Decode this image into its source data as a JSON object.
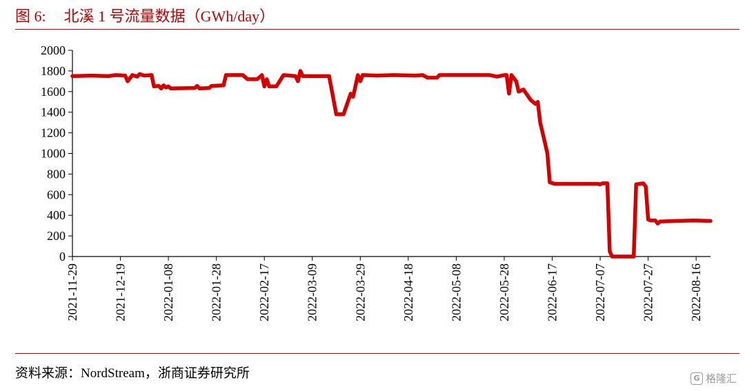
{
  "header": {
    "figure_number": "图 6:",
    "title": "北溪 1 号流量数据（GWh/day）"
  },
  "footer": {
    "source": "资料来源：NordStream，浙商证券研究所",
    "watermark": "格隆汇"
  },
  "chart_data": {
    "type": "line",
    "title": "北溪 1 号流量数据（GWh/day）",
    "xlabel": "",
    "ylabel": "",
    "ylim": [
      0,
      2000
    ],
    "yticks": [
      0,
      200,
      400,
      600,
      800,
      1000,
      1200,
      1400,
      1600,
      1800,
      2000
    ],
    "xticks": [
      "2021-11-29",
      "2021-12-19",
      "2022-01-08",
      "2022-01-28",
      "2022-02-17",
      "2022-03-09",
      "2022-03-29",
      "2022-04-18",
      "2022-05-08",
      "2022-05-28",
      "2022-06-17",
      "2022-07-07",
      "2022-07-27",
      "2022-08-16"
    ],
    "xlim": [
      "2021-11-29",
      "2022-08-22"
    ],
    "grid": false,
    "legend": "none",
    "series": [
      {
        "color": "#d40000",
        "points": [
          [
            "2021-11-29",
            1750
          ],
          [
            "2021-12-07",
            1755
          ],
          [
            "2021-12-14",
            1750
          ],
          [
            "2021-12-17",
            1760
          ],
          [
            "2021-12-21",
            1755
          ],
          [
            "2021-12-22",
            1700
          ],
          [
            "2021-12-24",
            1760
          ],
          [
            "2021-12-26",
            1745
          ],
          [
            "2021-12-27",
            1770
          ],
          [
            "2021-12-29",
            1755
          ],
          [
            "2022-01-01",
            1760
          ],
          [
            "2022-01-02",
            1650
          ],
          [
            "2022-01-04",
            1655
          ],
          [
            "2022-01-05",
            1630
          ],
          [
            "2022-01-06",
            1660
          ],
          [
            "2022-01-07",
            1640
          ],
          [
            "2022-01-08",
            1650
          ],
          [
            "2022-01-09",
            1630
          ],
          [
            "2022-01-19",
            1635
          ],
          [
            "2022-01-20",
            1655
          ],
          [
            "2022-01-21",
            1630
          ],
          [
            "2022-01-25",
            1635
          ],
          [
            "2022-01-26",
            1655
          ],
          [
            "2022-01-31",
            1660
          ],
          [
            "2022-02-01",
            1760
          ],
          [
            "2022-02-08",
            1760
          ],
          [
            "2022-02-10",
            1720
          ],
          [
            "2022-02-14",
            1720
          ],
          [
            "2022-02-16",
            1760
          ],
          [
            "2022-02-17",
            1650
          ],
          [
            "2022-02-18",
            1720
          ],
          [
            "2022-02-19",
            1650
          ],
          [
            "2022-02-22",
            1650
          ],
          [
            "2022-02-25",
            1760
          ],
          [
            "2022-03-02",
            1750
          ],
          [
            "2022-03-03",
            1700
          ],
          [
            "2022-03-04",
            1800
          ],
          [
            "2022-03-05",
            1750
          ],
          [
            "2022-03-16",
            1750
          ],
          [
            "2022-03-19",
            1380
          ],
          [
            "2022-03-22",
            1380
          ],
          [
            "2022-03-25",
            1580
          ],
          [
            "2022-03-26",
            1550
          ],
          [
            "2022-03-28",
            1760
          ],
          [
            "2022-03-29",
            1700
          ],
          [
            "2022-03-30",
            1760
          ],
          [
            "2022-04-05",
            1755
          ],
          [
            "2022-04-12",
            1760
          ],
          [
            "2022-04-21",
            1755
          ],
          [
            "2022-04-24",
            1760
          ],
          [
            "2022-04-26",
            1735
          ],
          [
            "2022-04-30",
            1735
          ],
          [
            "2022-05-01",
            1760
          ],
          [
            "2022-05-22",
            1760
          ],
          [
            "2022-05-25",
            1745
          ],
          [
            "2022-05-28",
            1760
          ],
          [
            "2022-05-29",
            1760
          ],
          [
            "2022-05-30",
            1580
          ],
          [
            "2022-05-31",
            1760
          ],
          [
            "2022-06-02",
            1700
          ],
          [
            "2022-06-03",
            1600
          ],
          [
            "2022-06-05",
            1620
          ],
          [
            "2022-06-08",
            1520
          ],
          [
            "2022-06-10",
            1480
          ],
          [
            "2022-06-11",
            1500
          ],
          [
            "2022-06-12",
            1300
          ],
          [
            "2022-06-14",
            1100
          ],
          [
            "2022-06-15",
            1000
          ],
          [
            "2022-06-16",
            720
          ],
          [
            "2022-06-18",
            705
          ],
          [
            "2022-06-30",
            705
          ],
          [
            "2022-07-06",
            705
          ],
          [
            "2022-07-07",
            700
          ],
          [
            "2022-07-08",
            710
          ],
          [
            "2022-07-10",
            710
          ],
          [
            "2022-07-11",
            50
          ],
          [
            "2022-07-12",
            0
          ],
          [
            "2022-07-21",
            0
          ],
          [
            "2022-07-22",
            700
          ],
          [
            "2022-07-25",
            710
          ],
          [
            "2022-07-26",
            680
          ],
          [
            "2022-07-27",
            360
          ],
          [
            "2022-07-28",
            350
          ],
          [
            "2022-07-30",
            350
          ],
          [
            "2022-07-31",
            320
          ],
          [
            "2022-08-01",
            340
          ],
          [
            "2022-08-08",
            345
          ],
          [
            "2022-08-15",
            350
          ],
          [
            "2022-08-22",
            345
          ]
        ]
      }
    ]
  }
}
